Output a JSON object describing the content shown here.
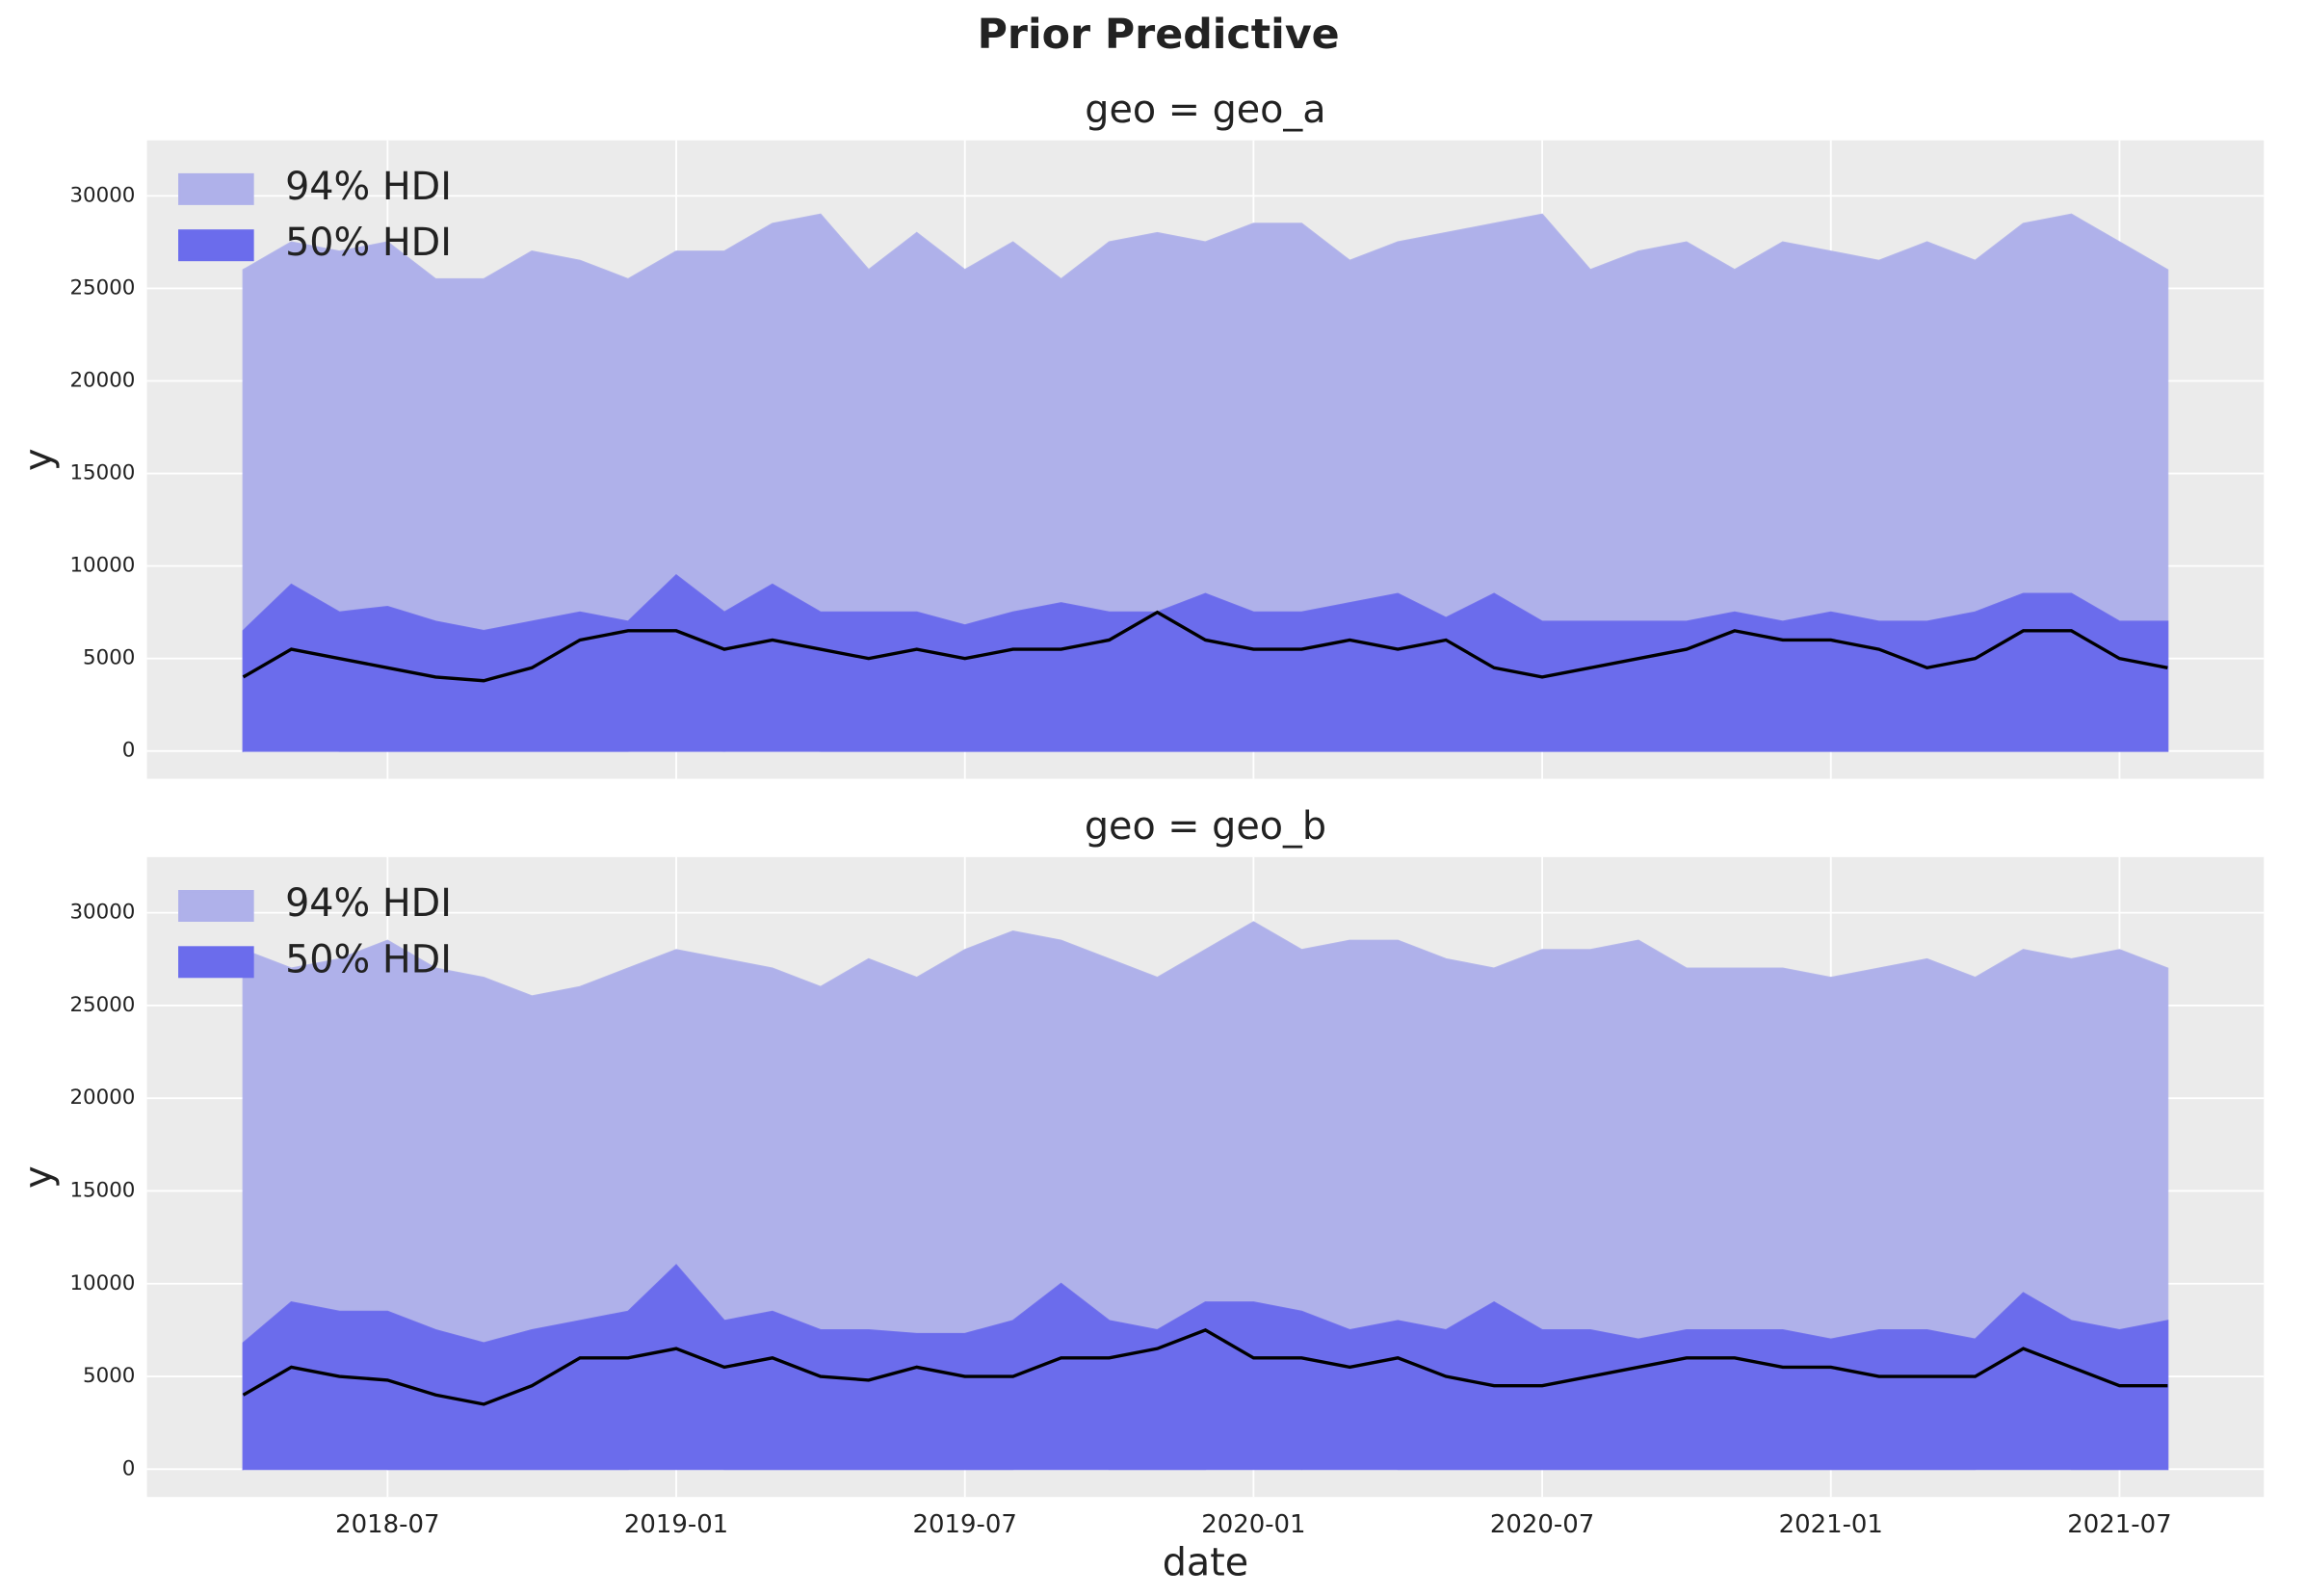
{
  "figure_title": "Prior Predictive",
  "chart_data": [
    {
      "type": "band",
      "title": "geo = geo_a",
      "ylabel": "y",
      "xlabel": null,
      "show_xtick_labels": false,
      "x": [
        "2018-04",
        "2018-05",
        "2018-06",
        "2018-07",
        "2018-08",
        "2018-09",
        "2018-10",
        "2018-11",
        "2018-12",
        "2019-01",
        "2019-02",
        "2019-03",
        "2019-04",
        "2019-05",
        "2019-06",
        "2019-07",
        "2019-08",
        "2019-09",
        "2019-10",
        "2019-11",
        "2019-12",
        "2020-01",
        "2020-02",
        "2020-03",
        "2020-04",
        "2020-05",
        "2020-06",
        "2020-07",
        "2020-08",
        "2020-09",
        "2020-10",
        "2020-11",
        "2020-12",
        "2021-01",
        "2021-02",
        "2021-03",
        "2021-04",
        "2021-05",
        "2021-06",
        "2021-07",
        "2021-08"
      ],
      "xlim": [
        "2018-02",
        "2021-10"
      ],
      "xticks": [
        "2018-07",
        "2019-01",
        "2019-07",
        "2020-01",
        "2020-07",
        "2021-01",
        "2021-07"
      ],
      "ylim": [
        -1500,
        33000
      ],
      "yticks": [
        0,
        5000,
        10000,
        15000,
        20000,
        25000,
        30000
      ],
      "grid": true,
      "legend": "upper-left",
      "series": [
        {
          "name": "94% HDI",
          "color": "#afb1ea",
          "lower": [
            0,
            1700,
            0,
            0,
            0,
            0,
            0,
            0,
            0,
            1000,
            0,
            1400,
            0,
            0,
            0,
            0,
            0,
            0,
            0,
            0,
            0,
            0,
            0,
            0,
            0,
            0,
            0,
            0,
            0,
            0,
            0,
            0,
            0,
            0,
            0,
            0,
            0,
            0,
            0,
            0,
            0
          ],
          "upper": [
            26000,
            27500,
            27000,
            27500,
            25500,
            25500,
            27000,
            26500,
            25500,
            27000,
            27000,
            28500,
            29000,
            26000,
            28000,
            26000,
            27500,
            25500,
            27500,
            28000,
            27500,
            28500,
            28500,
            26500,
            27500,
            28000,
            28500,
            29000,
            26000,
            27000,
            27500,
            26000,
            27500,
            27000,
            26500,
            27500,
            26500,
            28500,
            29000,
            27500,
            26000
          ]
        },
        {
          "name": "50% HDI",
          "color": "#6b6cec",
          "lower": [
            0,
            0,
            0,
            0,
            0,
            0,
            0,
            0,
            0,
            0,
            0,
            0,
            0,
            0,
            0,
            0,
            0,
            0,
            0,
            0,
            0,
            0,
            0,
            0,
            0,
            0,
            0,
            0,
            0,
            0,
            0,
            0,
            0,
            0,
            0,
            0,
            0,
            0,
            0,
            0,
            0
          ],
          "upper": [
            6500,
            9000,
            7500,
            7800,
            7000,
            6500,
            7000,
            7500,
            7000,
            9500,
            7500,
            9000,
            7500,
            7500,
            7500,
            6800,
            7500,
            8000,
            7500,
            7500,
            8500,
            7500,
            7500,
            8000,
            8500,
            7200,
            8500,
            7000,
            7000,
            7000,
            7000,
            7500,
            7000,
            7500,
            7000,
            7000,
            7500,
            8500,
            8500,
            7000,
            7000
          ]
        },
        {
          "color": "#000000",
          "values": [
            4000,
            5500,
            5000,
            4500,
            4000,
            3800,
            4500,
            6000,
            6500,
            6500,
            5500,
            6000,
            5500,
            5000,
            5500,
            5000,
            5500,
            5500,
            6000,
            7500,
            6000,
            5500,
            5500,
            6000,
            5500,
            6000,
            4500,
            4000,
            4500,
            5000,
            5500,
            6500,
            6000,
            6000,
            5500,
            4500,
            5000,
            6500,
            6500,
            5000,
            4500
          ]
        }
      ]
    },
    {
      "type": "band",
      "title": "geo = geo_b",
      "ylabel": "y",
      "xlabel": "date",
      "show_xtick_labels": true,
      "x": [
        "2018-04",
        "2018-05",
        "2018-06",
        "2018-07",
        "2018-08",
        "2018-09",
        "2018-10",
        "2018-11",
        "2018-12",
        "2019-01",
        "2019-02",
        "2019-03",
        "2019-04",
        "2019-05",
        "2019-06",
        "2019-07",
        "2019-08",
        "2019-09",
        "2019-10",
        "2019-11",
        "2019-12",
        "2020-01",
        "2020-02",
        "2020-03",
        "2020-04",
        "2020-05",
        "2020-06",
        "2020-07",
        "2020-08",
        "2020-09",
        "2020-10",
        "2020-11",
        "2020-12",
        "2021-01",
        "2021-02",
        "2021-03",
        "2021-04",
        "2021-05",
        "2021-06",
        "2021-07",
        "2021-08"
      ],
      "xlim": [
        "2018-02",
        "2021-10"
      ],
      "xticks": [
        "2018-07",
        "2019-01",
        "2019-07",
        "2020-01",
        "2020-07",
        "2021-01",
        "2021-07"
      ],
      "ylim": [
        -1500,
        33000
      ],
      "yticks": [
        0,
        5000,
        10000,
        15000,
        20000,
        25000,
        30000
      ],
      "grid": true,
      "legend": "upper-left",
      "series": [
        {
          "name": "94% HDI",
          "color": "#afb1ea",
          "lower": [
            0,
            1500,
            3000,
            0,
            0,
            0,
            0,
            0,
            0,
            2500,
            0,
            0,
            0,
            0,
            0,
            0,
            0,
            2000,
            0,
            0,
            0,
            2000,
            0,
            1500,
            0,
            0,
            0,
            0,
            0,
            0,
            0,
            0,
            0,
            0,
            0,
            0,
            0,
            1500,
            0,
            0,
            0
          ],
          "upper": [
            28000,
            27000,
            27500,
            28500,
            27000,
            26500,
            25500,
            26000,
            27000,
            28000,
            27500,
            27000,
            26000,
            27500,
            26500,
            28000,
            29000,
            28500,
            27500,
            26500,
            28000,
            29500,
            28000,
            28500,
            28500,
            27500,
            27000,
            28000,
            28000,
            28500,
            27000,
            27000,
            27000,
            26500,
            27000,
            27500,
            26500,
            28000,
            27500,
            28000,
            27000
          ]
        },
        {
          "name": "50% HDI",
          "color": "#6b6cec",
          "lower": [
            0,
            0,
            0,
            0,
            0,
            0,
            0,
            0,
            0,
            0,
            0,
            0,
            0,
            0,
            0,
            0,
            0,
            0,
            0,
            0,
            0,
            0,
            0,
            0,
            0,
            0,
            0,
            0,
            0,
            0,
            0,
            0,
            0,
            0,
            0,
            0,
            0,
            0,
            0,
            0,
            0
          ],
          "upper": [
            6800,
            9000,
            8500,
            8500,
            7500,
            6800,
            7500,
            8000,
            8500,
            11000,
            8000,
            8500,
            7500,
            7500,
            7300,
            7300,
            8000,
            10000,
            8000,
            7500,
            9000,
            9000,
            8500,
            7500,
            8000,
            7500,
            9000,
            7500,
            7500,
            7000,
            7500,
            7500,
            7500,
            7000,
            7500,
            7500,
            7000,
            9500,
            8000,
            7500,
            8000
          ]
        },
        {
          "color": "#000000",
          "values": [
            4000,
            5500,
            5000,
            4800,
            4000,
            3500,
            4500,
            6000,
            6000,
            6500,
            5500,
            6000,
            5000,
            4800,
            5500,
            5000,
            5000,
            6000,
            6000,
            6500,
            7500,
            6000,
            6000,
            5500,
            6000,
            5000,
            4500,
            4500,
            5000,
            5500,
            6000,
            6000,
            5500,
            5500,
            5000,
            5000,
            5000,
            6500,
            5500,
            4500,
            4500
          ]
        }
      ]
    }
  ]
}
